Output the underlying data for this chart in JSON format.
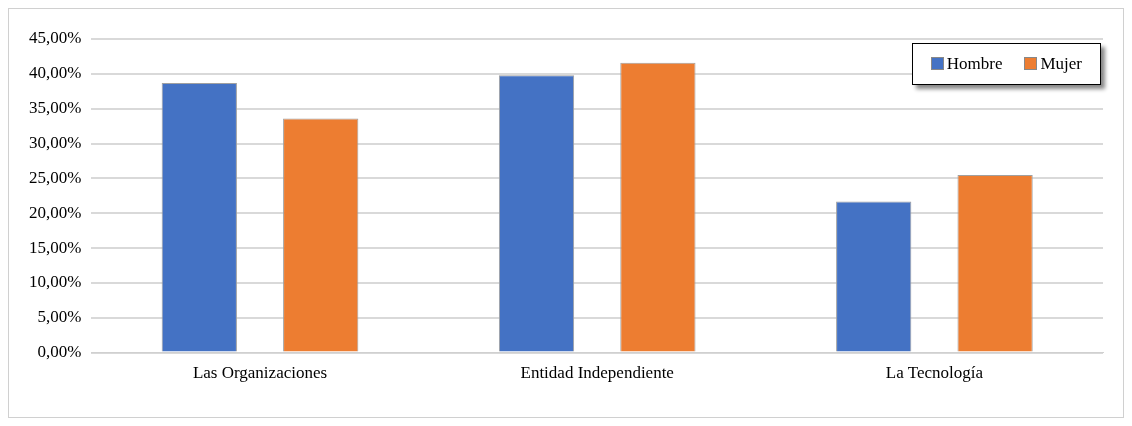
{
  "chart_data": {
    "type": "bar",
    "categories": [
      "Las Organizaciones",
      "Entidad Independiente",
      "La Tecnología"
    ],
    "series": [
      {
        "name": "Hombre",
        "color": "#4472c4",
        "values": [
          38.7,
          39.8,
          21.7
        ]
      },
      {
        "name": "Mujer",
        "color": "#ed7d31",
        "values": [
          33.6,
          41.6,
          25.5
        ]
      }
    ],
    "ylim": [
      0,
      45
    ],
    "yticks": [
      {
        "value": 0,
        "label": "0,00%"
      },
      {
        "value": 5,
        "label": "5,00%"
      },
      {
        "value": 10,
        "label": "10,00%"
      },
      {
        "value": 15,
        "label": "15,00%"
      },
      {
        "value": 20,
        "label": "20,00%"
      },
      {
        "value": 25,
        "label": "25,00%"
      },
      {
        "value": 30,
        "label": "30,00%"
      },
      {
        "value": 35,
        "label": "35,00%"
      },
      {
        "value": 40,
        "label": "40,00%"
      },
      {
        "value": 45,
        "label": "45,00%"
      }
    ],
    "grid": "y",
    "legend": "top right"
  }
}
